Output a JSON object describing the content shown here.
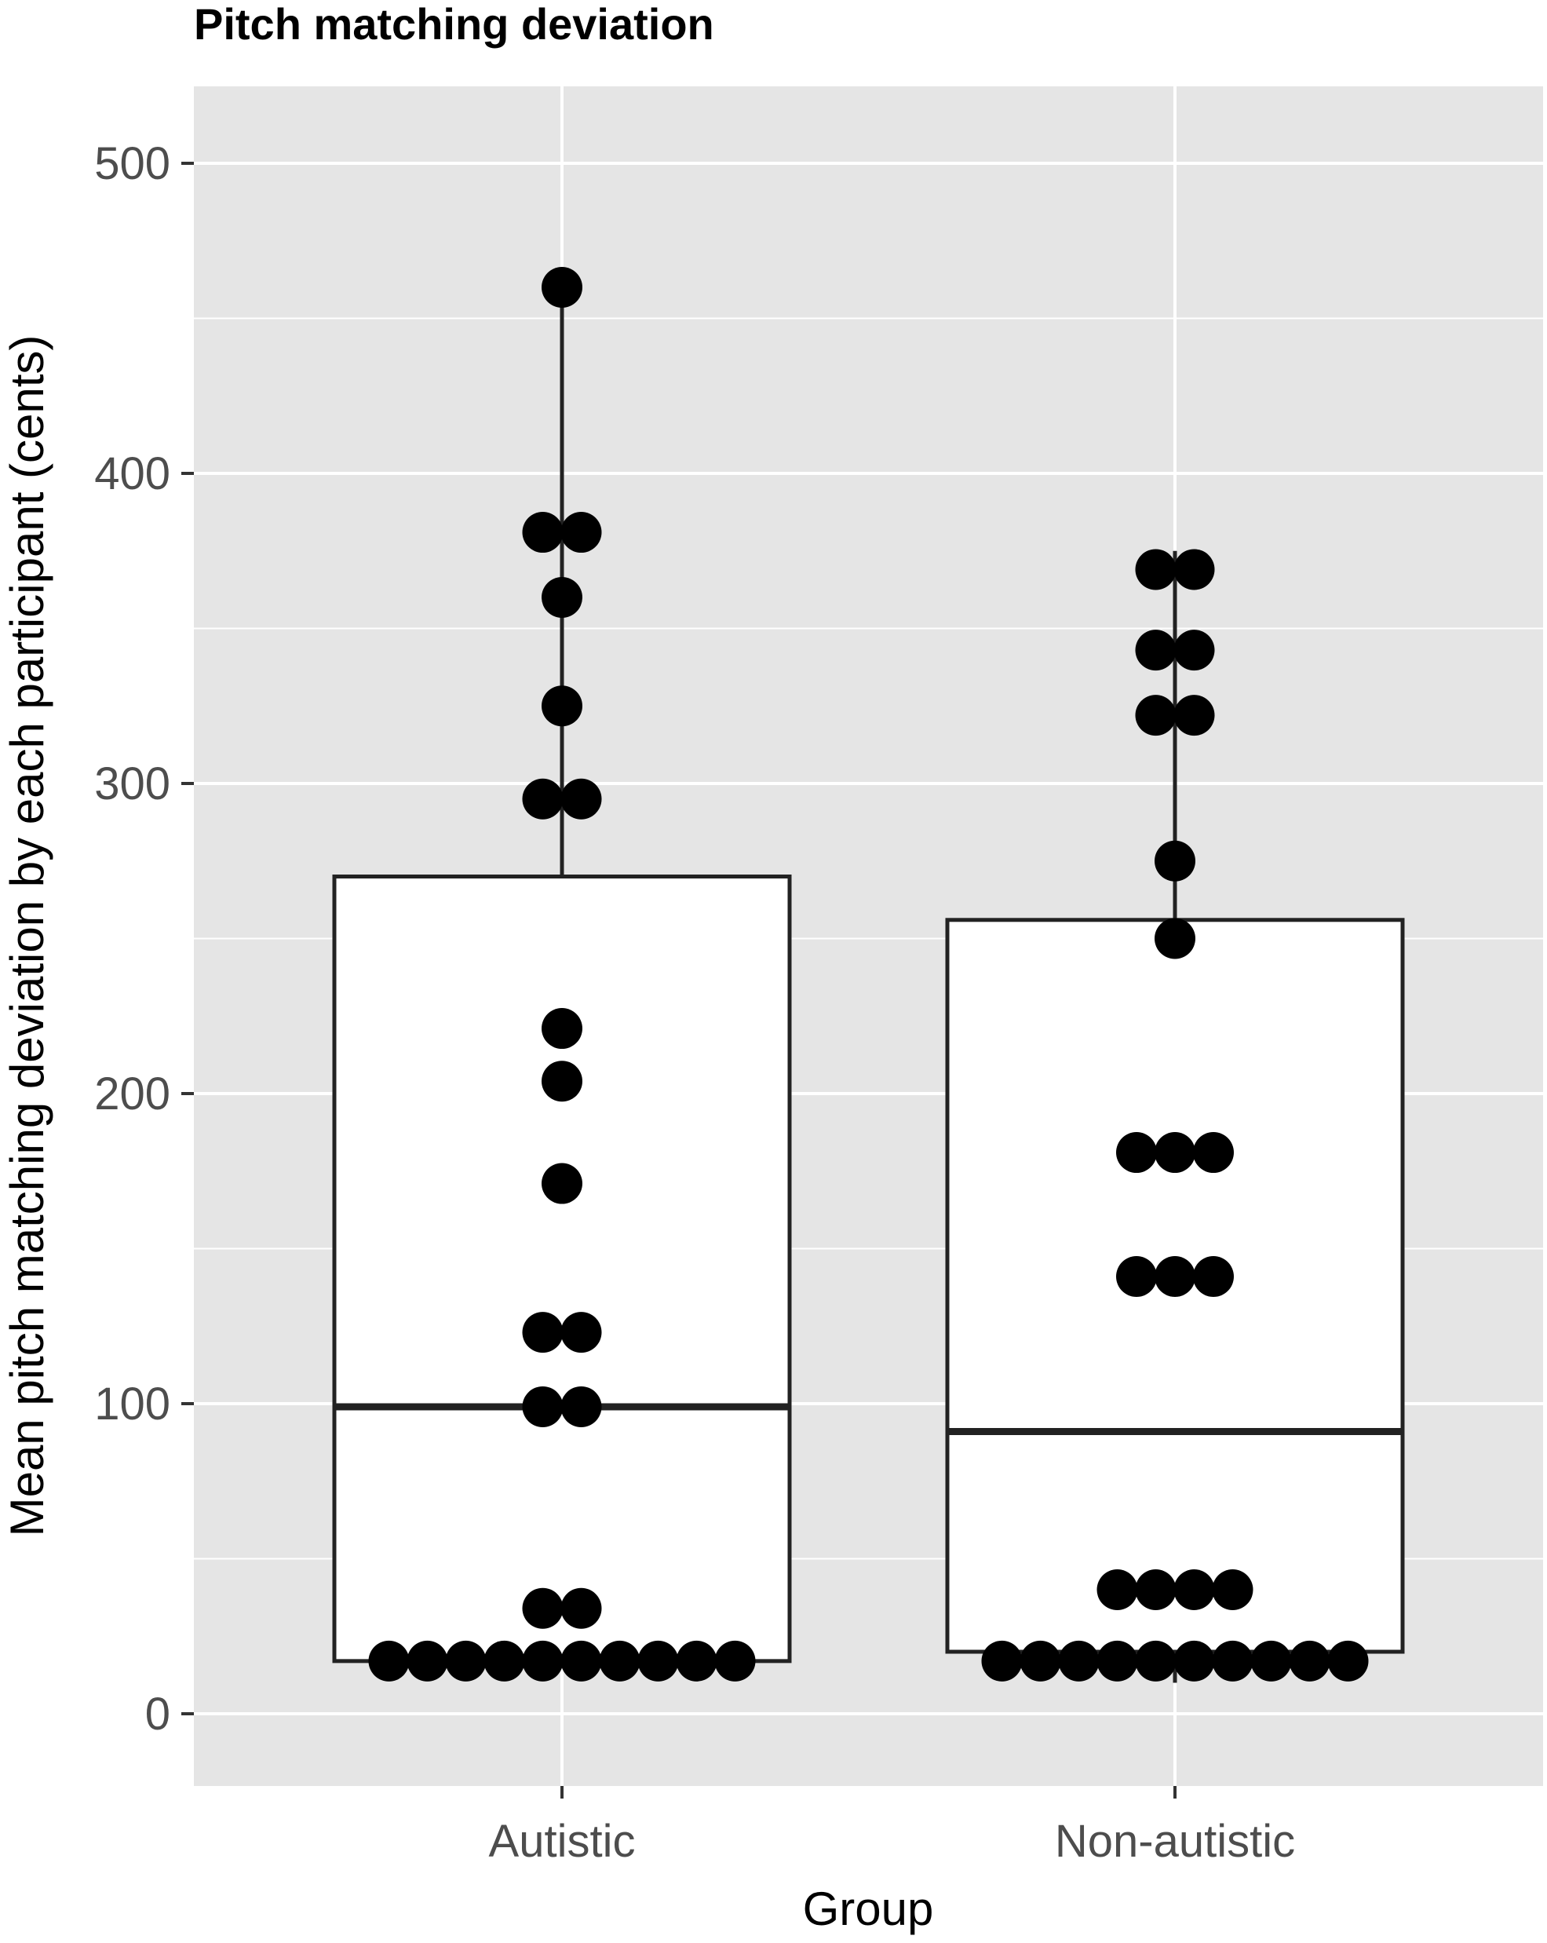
{
  "chart_data": {
    "type": "box-dotplot",
    "title": "Pitch matching deviation",
    "xlabel": "Group",
    "ylabel": "Mean pitch matching deviation by each participant (cents)",
    "categories": [
      "Autistic",
      "Non-autistic"
    ],
    "ylim": [
      -25,
      525
    ],
    "yticks": [
      0,
      100,
      200,
      300,
      400,
      500
    ],
    "ytick_labels": [
      "0",
      "100",
      "200",
      "300",
      "400",
      "500"
    ],
    "grid": true,
    "background": "#e5e5e5",
    "box_stats": [
      {
        "group": "Autistic",
        "q1": 17,
        "median": 99,
        "q3": 270,
        "whisker_low": 17,
        "whisker_high": 460
      },
      {
        "group": "Non-autistic",
        "q1": 20,
        "median": 91,
        "q3": 256,
        "whisker_low": 10,
        "whisker_high": 375
      }
    ],
    "points": [
      {
        "group": "Autistic",
        "bins": [
          {
            "y": 460,
            "count": 1
          },
          {
            "y": 381,
            "count": 2
          },
          {
            "y": 360,
            "count": 1
          },
          {
            "y": 325,
            "count": 1
          },
          {
            "y": 295,
            "count": 2
          },
          {
            "y": 221,
            "count": 1
          },
          {
            "y": 204,
            "count": 1
          },
          {
            "y": 171,
            "count": 1
          },
          {
            "y": 123,
            "count": 2
          },
          {
            "y": 99,
            "count": 2
          },
          {
            "y": 34,
            "count": 2
          },
          {
            "y": 17,
            "count": 10
          }
        ]
      },
      {
        "group": "Non-autistic",
        "bins": [
          {
            "y": 369,
            "count": 2
          },
          {
            "y": 343,
            "count": 2
          },
          {
            "y": 322,
            "count": 2
          },
          {
            "y": 275,
            "count": 1
          },
          {
            "y": 250,
            "count": 1
          },
          {
            "y": 181,
            "count": 3
          },
          {
            "y": 141,
            "count": 3
          },
          {
            "y": 40,
            "count": 4
          },
          {
            "y": 17,
            "count": 10
          }
        ]
      }
    ]
  }
}
